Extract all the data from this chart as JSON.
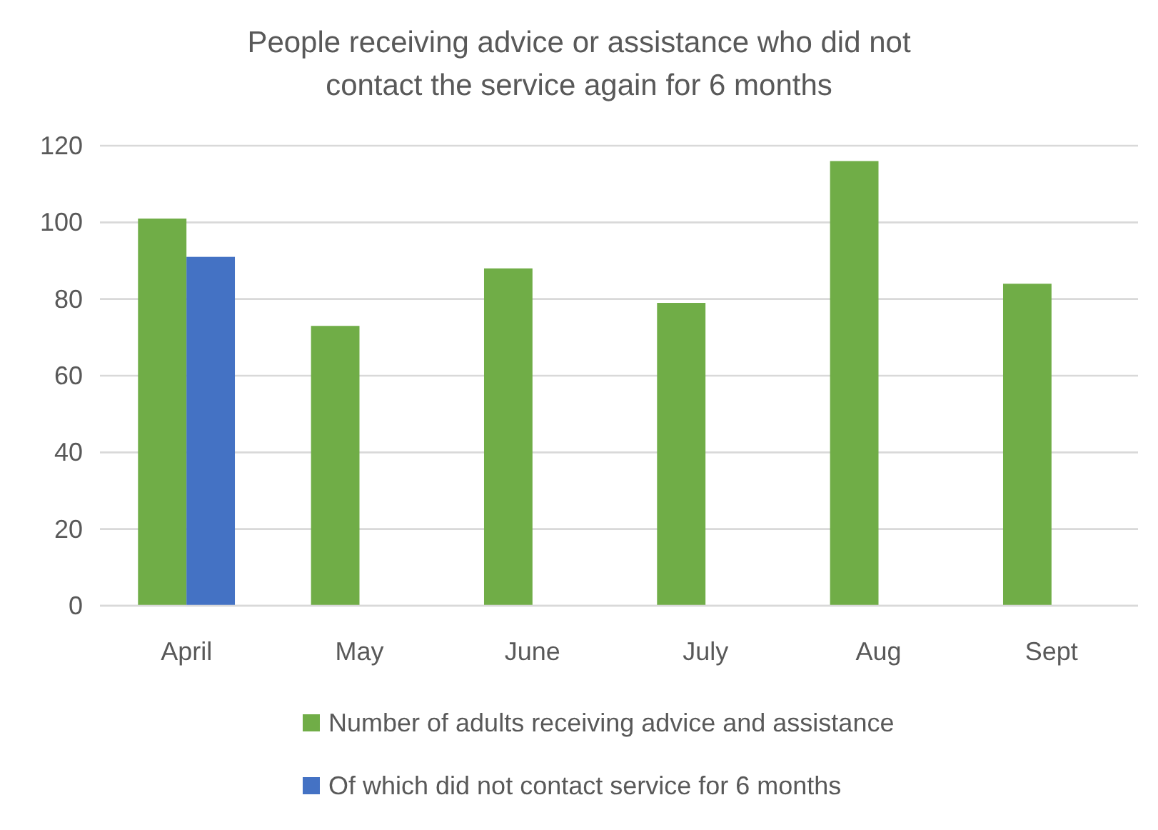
{
  "chart_data": {
    "type": "bar",
    "title": "People receiving advice or assistance who did not contact the service again for 6 months",
    "categories": [
      "April",
      "May",
      "June",
      "July",
      "Aug",
      "Sept"
    ],
    "series": [
      {
        "name": "Number of adults receiving advice and assistance",
        "color": "#70ad47",
        "values": [
          101,
          73,
          88,
          79,
          116,
          84
        ]
      },
      {
        "name": "Of which did not contact service for 6 months",
        "color": "#4472c4",
        "values": [
          91,
          null,
          null,
          null,
          null,
          null
        ]
      }
    ],
    "ylim": [
      0,
      120
    ],
    "yticks": [
      0,
      20,
      40,
      60,
      80,
      100,
      120
    ],
    "grid": "y",
    "legend": "bottom"
  }
}
